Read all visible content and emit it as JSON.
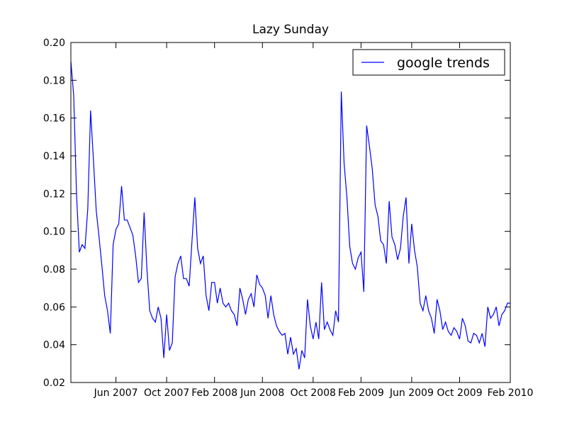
{
  "chart_data": {
    "type": "line",
    "title": "Lazy Sunday",
    "x": [
      "2007-02",
      "2007-02",
      "2007-02",
      "2007-03",
      "2007-03",
      "2007-03",
      "2007-03",
      "2007-04",
      "2007-04",
      "2007-04",
      "2007-04",
      "2007-04",
      "2007-05",
      "2007-05",
      "2007-05",
      "2007-05",
      "2007-06",
      "2007-06",
      "2007-06",
      "2007-06",
      "2007-07",
      "2007-07",
      "2007-07",
      "2007-07",
      "2007-07",
      "2007-08",
      "2007-08",
      "2007-08",
      "2007-08",
      "2007-09",
      "2007-09",
      "2007-09",
      "2007-09",
      "2007-09",
      "2007-10",
      "2007-10",
      "2007-10",
      "2007-10",
      "2007-11",
      "2007-11",
      "2007-11",
      "2007-11",
      "2007-12",
      "2007-12",
      "2007-12",
      "2007-12",
      "2007-12",
      "2008-01",
      "2008-01",
      "2008-01",
      "2008-01",
      "2008-02",
      "2008-02",
      "2008-02",
      "2008-02",
      "2008-03",
      "2008-03",
      "2008-03",
      "2008-03",
      "2008-03",
      "2008-04",
      "2008-04",
      "2008-04",
      "2008-04",
      "2008-05",
      "2008-05",
      "2008-05",
      "2008-05",
      "2008-06",
      "2008-06",
      "2008-06",
      "2008-06",
      "2008-06",
      "2008-07",
      "2008-07",
      "2008-07",
      "2008-07",
      "2008-08",
      "2008-08",
      "2008-08",
      "2008-08",
      "2008-08",
      "2008-09",
      "2008-09",
      "2008-09",
      "2008-09",
      "2008-10",
      "2008-10",
      "2008-10",
      "2008-10",
      "2008-11",
      "2008-11",
      "2008-11",
      "2008-11",
      "2008-11",
      "2008-12",
      "2008-12",
      "2008-12",
      "2008-12",
      "2009-01",
      "2009-01",
      "2009-01",
      "2009-01",
      "2009-02",
      "2009-02",
      "2009-02",
      "2009-02",
      "2009-03",
      "2009-03",
      "2009-03",
      "2009-03",
      "2009-03",
      "2009-04",
      "2009-04",
      "2009-04",
      "2009-04",
      "2009-05",
      "2009-05",
      "2009-05",
      "2009-05",
      "2009-05",
      "2009-06",
      "2009-06",
      "2009-06",
      "2009-06",
      "2009-07",
      "2009-07",
      "2009-07",
      "2009-07",
      "2009-08",
      "2009-08",
      "2009-08",
      "2009-08",
      "2009-08",
      "2009-09",
      "2009-09",
      "2009-09",
      "2009-09",
      "2009-10",
      "2009-10",
      "2009-10",
      "2009-10",
      "2009-11",
      "2009-11",
      "2009-11",
      "2009-11",
      "2009-11",
      "2009-12",
      "2009-12",
      "2009-12",
      "2009-12",
      "2010-01",
      "2010-01",
      "2010-01",
      "2010-01",
      "2010-01",
      "2010-02"
    ],
    "series": [
      {
        "name": "google trends",
        "color": "#0000ff",
        "values": [
          0.19,
          0.172,
          0.12,
          0.089,
          0.093,
          0.091,
          0.112,
          0.164,
          0.138,
          0.111,
          0.097,
          0.082,
          0.066,
          0.058,
          0.046,
          0.093,
          0.101,
          0.104,
          0.124,
          0.106,
          0.106,
          0.102,
          0.098,
          0.087,
          0.073,
          0.075,
          0.11,
          0.08,
          0.058,
          0.054,
          0.052,
          0.06,
          0.054,
          0.033,
          0.056,
          0.037,
          0.041,
          0.076,
          0.083,
          0.087,
          0.075,
          0.075,
          0.071,
          0.095,
          0.118,
          0.091,
          0.083,
          0.087,
          0.066,
          0.058,
          0.073,
          0.073,
          0.062,
          0.07,
          0.062,
          0.06,
          0.062,
          0.058,
          0.056,
          0.05,
          0.07,
          0.064,
          0.056,
          0.064,
          0.067,
          0.06,
          0.077,
          0.072,
          0.07,
          0.066,
          0.054,
          0.066,
          0.056,
          0.05,
          0.047,
          0.045,
          0.046,
          0.035,
          0.044,
          0.035,
          0.038,
          0.027,
          0.037,
          0.033,
          0.064,
          0.05,
          0.043,
          0.052,
          0.043,
          0.073,
          0.048,
          0.052,
          0.048,
          0.045,
          0.058,
          0.052,
          0.174,
          0.136,
          0.118,
          0.092,
          0.083,
          0.08,
          0.086,
          0.089,
          0.068,
          0.156,
          0.145,
          0.133,
          0.114,
          0.108,
          0.095,
          0.093,
          0.083,
          0.116,
          0.097,
          0.093,
          0.085,
          0.091,
          0.108,
          0.118,
          0.083,
          0.104,
          0.09,
          0.081,
          0.062,
          0.058,
          0.066,
          0.058,
          0.054,
          0.046,
          0.064,
          0.058,
          0.048,
          0.052,
          0.047,
          0.045,
          0.049,
          0.047,
          0.043,
          0.054,
          0.05,
          0.042,
          0.041,
          0.046,
          0.045,
          0.041,
          0.046,
          0.039,
          0.06,
          0.054,
          0.056,
          0.06,
          0.05,
          0.056,
          0.058,
          0.062,
          0.062
        ]
      }
    ],
    "xticks": [
      {
        "value": "2007-06",
        "label": "Jun 2007"
      },
      {
        "value": "2007-10",
        "label": "Oct 2007"
      },
      {
        "value": "2008-02",
        "label": "Feb 2008"
      },
      {
        "value": "2008-06",
        "label": "Jun 2008"
      },
      {
        "value": "2008-10",
        "label": "Oct 2008"
      },
      {
        "value": "2009-02",
        "label": "Feb 2009"
      },
      {
        "value": "2009-06",
        "label": "Jun 2009"
      },
      {
        "value": "2009-10",
        "label": "Oct 2009"
      },
      {
        "value": "2010-02",
        "label": "Feb 2010"
      }
    ],
    "ylim": [
      0.02,
      0.2
    ],
    "yticks": [
      0.02,
      0.04,
      0.06,
      0.08,
      {
        "value": 0.1,
        "label": "0.10"
      },
      0.12,
      0.14,
      0.16,
      0.18,
      {
        "value": 0.2,
        "label": "0.20"
      }
    ],
    "grid": false,
    "legend": "upper right"
  }
}
